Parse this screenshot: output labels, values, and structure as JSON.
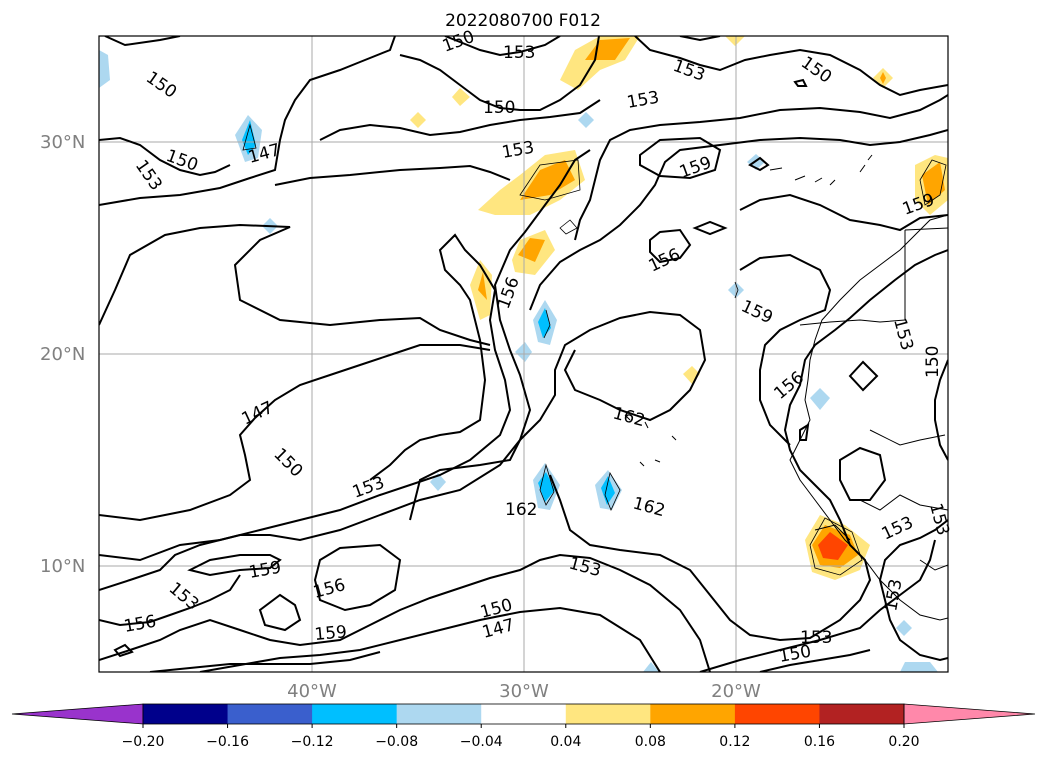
{
  "title": "2022080700 F012",
  "axes": {
    "lat_ticks": [
      "30°N",
      "20°N",
      "10°N"
    ],
    "lon_ticks": [
      "40°W",
      "30°W",
      "20°W"
    ]
  },
  "contour_labels": [
    "150",
    "153",
    "150",
    "150",
    "153",
    "153",
    "153",
    "150",
    "147",
    "153",
    "156",
    "159",
    "156",
    "159",
    "153",
    "150",
    "150",
    "153",
    "156",
    "162",
    "162",
    "162",
    "147",
    "150",
    "153",
    "159",
    "153",
    "156",
    "156",
    "159",
    "153",
    "150",
    "147",
    "153",
    "150",
    "153",
    "153",
    "150",
    "150",
    "159",
    "153"
  ],
  "colorbar": {
    "ticks": [
      "−0.20",
      "−0.16",
      "−0.12",
      "−0.08",
      "−0.04",
      "0.04",
      "0.08",
      "0.12",
      "0.16",
      "0.20"
    ],
    "colors": [
      "#9933cc",
      "#00008b",
      "#3a5fcd",
      "#00bfff",
      "#add8f0",
      "#ffffff",
      "#ffe680",
      "#ffa500",
      "#ff4500",
      "#b22222",
      "#ff88aa"
    ],
    "bins": [
      -0.24,
      -0.2,
      -0.16,
      -0.12,
      -0.08,
      -0.04,
      0.04,
      0.08,
      0.12,
      0.16,
      0.2,
      0.24
    ]
  },
  "colors": {
    "grid": "#aaaaaa",
    "contour": "#000000",
    "tick_label": "#808080"
  }
}
